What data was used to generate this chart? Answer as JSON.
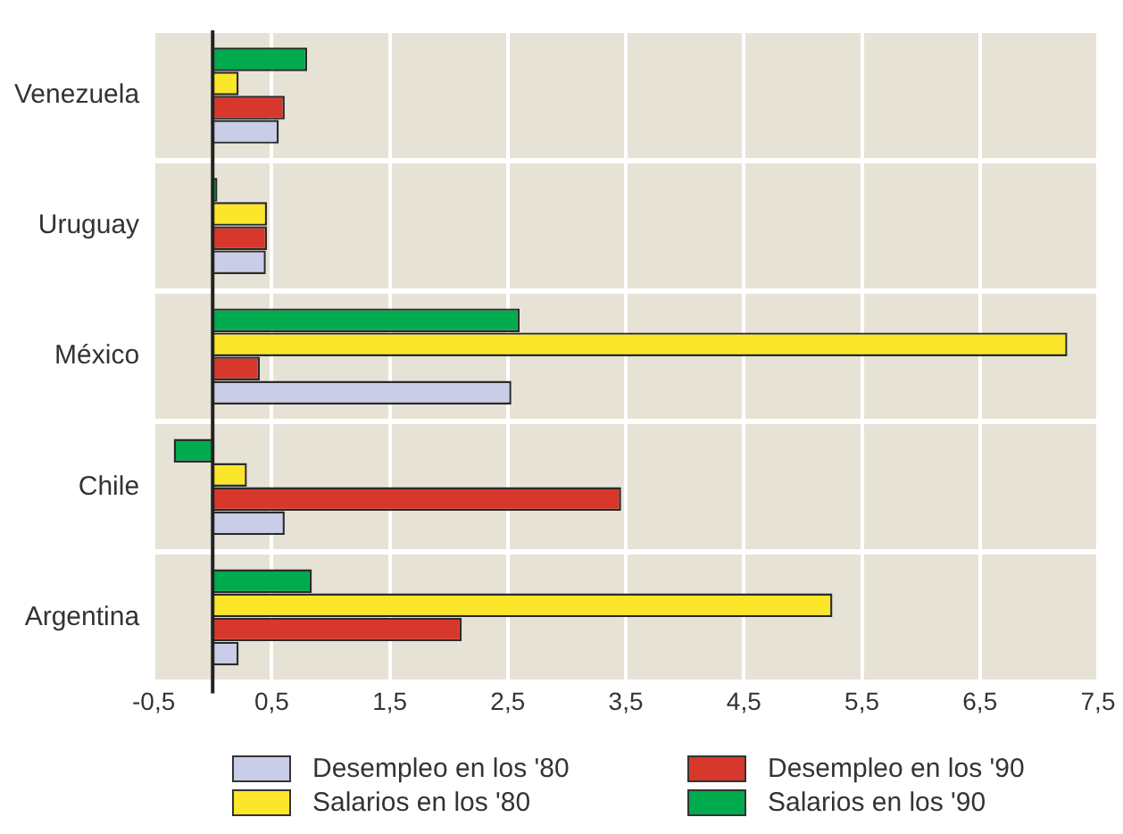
{
  "chart_data": {
    "type": "bar",
    "orientation": "horizontal",
    "categories": [
      "Venezuela",
      "Uruguay",
      "México",
      "Chile",
      "Argentina"
    ],
    "series": [
      {
        "name": "Desempleo en los '80",
        "color": "#c9cde8",
        "values": [
          0.56,
          0.45,
          2.53,
          0.61,
          0.22
        ]
      },
      {
        "name": "Desempleo en los '90",
        "color": "#d8382c",
        "values": [
          0.61,
          0.46,
          0.4,
          3.46,
          2.11
        ]
      },
      {
        "name": "Salarios en los '80",
        "color": "#fbe62a",
        "values": [
          0.22,
          0.46,
          7.24,
          0.29,
          5.25
        ]
      },
      {
        "name": "Salarios en los '90",
        "color": "#00ab4e",
        "values": [
          0.8,
          0.04,
          2.6,
          -0.33,
          0.84
        ]
      }
    ],
    "xlim": [
      -0.5,
      7.5
    ],
    "xticks": [
      {
        "value": -0.5,
        "label": "-0,5"
      },
      {
        "value": 0.5,
        "label": "0,5"
      },
      {
        "value": 1.5,
        "label": "1,5"
      },
      {
        "value": 2.5,
        "label": "2,5"
      },
      {
        "value": 3.5,
        "label": "3,5"
      },
      {
        "value": 4.5,
        "label": "4,5"
      },
      {
        "value": 5.5,
        "label": "5,5"
      },
      {
        "value": 6.5,
        "label": "6,5"
      },
      {
        "value": 7.5,
        "label": "7,5"
      }
    ],
    "grid": true,
    "legend": "bottom"
  }
}
